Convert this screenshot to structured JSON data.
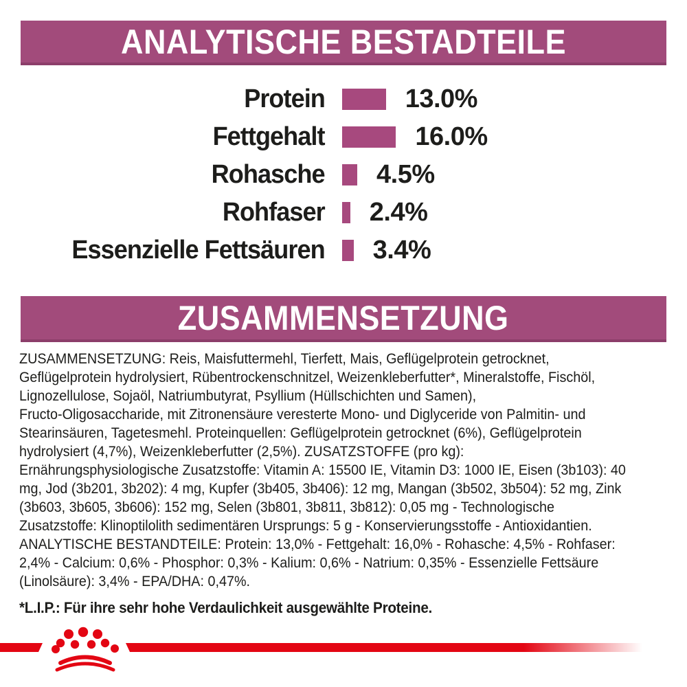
{
  "colors": {
    "banner_bg": "#A24B7B",
    "banner_border": "#8C3E6A",
    "bar_fill": "#A7497E",
    "text": "#1d1d1b",
    "brand_red": "#E30613"
  },
  "header_banner": {
    "title": "ANALYTISCHE BESTADTEILE"
  },
  "chart_data": {
    "type": "bar",
    "orientation": "horizontal",
    "title": "ANALYTISCHE BESTADTEILE",
    "categories": [
      "Protein",
      "Fettgehalt",
      "Rohasche",
      "Rohfaser",
      "Essenzielle Fettsäuren"
    ],
    "values": [
      13.0,
      16.0,
      4.5,
      2.4,
      3.4
    ],
    "value_labels": [
      "13.0%",
      "16.0%",
      "4.5%",
      "2.4%",
      "3.4%"
    ],
    "unit": "%",
    "xlim": [
      0,
      16
    ],
    "bar_color": "#A7497E",
    "grid": false,
    "legend": false
  },
  "section_banner": {
    "title": "ZUSAMMENSETZUNG"
  },
  "composition": {
    "lines": [
      "ZUSAMMENSETZUNG: Reis, Maisfuttermehl, Tierfett, Mais, Geflügelprotein getrocknet,",
      "Geflügelprotein hydrolysiert, Rübentrockenschnitzel, Weizenkleberfutter*, Mineralstoffe, Fischöl,",
      "Lignozellulose, Sojaöl, Natriumbutyrat, Psyllium (Hüllschichten und Samen),",
      "Fructo-Oligosaccharide, mit Zitronensäure veresterte Mono- und Diglyceride von Palmitin- und",
      "Stearinsäuren, Tagetesmehl. Proteinquellen: Geflügelprotein getrocknet (6%), Geflügelprotein",
      "hydrolysiert (4,7%), Weizenkleberfutter (2,5%). ZUSATZSTOFFE (pro kg):",
      "Ernährungsphysiologische Zusatzstoffe: Vitamin A: 15500 IE, Vitamin D3: 1000 IE, Eisen (3b103): 40",
      "mg, Jod (3b201, 3b202): 4 mg, Kupfer (3b405, 3b406): 12 mg, Mangan (3b502, 3b504): 52 mg, Zink",
      "(3b603, 3b605, 3b606): 152 mg, Selen (3b801, 3b811, 3b812): 0,05 mg - Technologische",
      "Zusatzstoffe: Klinoptilolith sedimentären Ursprungs: 5 g - Konservierungsstoffe - Antioxidantien.",
      "ANALYTISCHE BESTANDTEILE: Protein: 13,0% - Fettgehalt: 16,0% - Rohasche: 4,5% - Rohfaser:",
      "2,4% - Calcium: 0,6% - Phosphor: 0,3% - Kalium: 0,6% - Natrium: 0,35% - Essenzielle Fettsäure",
      "(Linolsäure): 3,4% - EPA/DHA: 0,47%."
    ]
  },
  "footnote": {
    "text": "*L.I.P.: Für ihre sehr hohe Verdaulichkeit ausgewählte Proteine."
  },
  "footer": {
    "logo_icon": "royal-canin-crown-logo"
  }
}
